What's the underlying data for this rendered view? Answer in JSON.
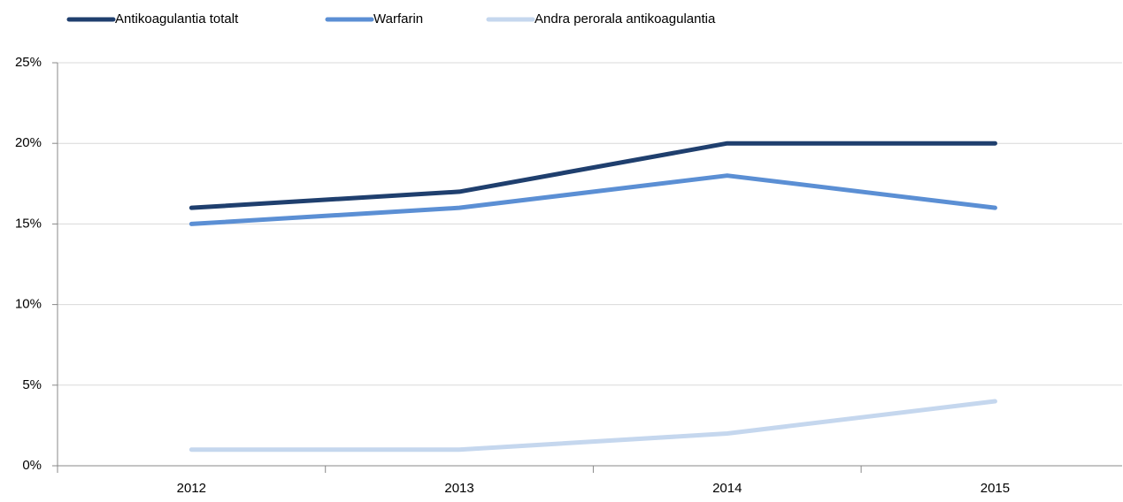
{
  "chart_data": {
    "type": "line",
    "categories": [
      "2012",
      "2013",
      "2014",
      "2015"
    ],
    "series": [
      {
        "name": "Antikoagulantia totalt",
        "color": "#1f3f6e",
        "values": [
          16,
          17,
          20,
          20
        ]
      },
      {
        "name": "Warfarin",
        "color": "#5b8fd4",
        "values": [
          15,
          16,
          18,
          16
        ]
      },
      {
        "name": "Andra perorala antikoagulantia",
        "color": "#c5d7ee",
        "values": [
          1,
          1,
          2,
          4
        ]
      }
    ],
    "ylim": [
      0,
      25
    ],
    "yticks": [
      {
        "value": 0,
        "label": "0%"
      },
      {
        "value": 5,
        "label": "5%"
      },
      {
        "value": 10,
        "label": "10%"
      },
      {
        "value": 15,
        "label": "15%"
      },
      {
        "value": 20,
        "label": "20%"
      },
      {
        "value": 25,
        "label": "25%"
      }
    ],
    "grid": true,
    "legend": "top"
  }
}
